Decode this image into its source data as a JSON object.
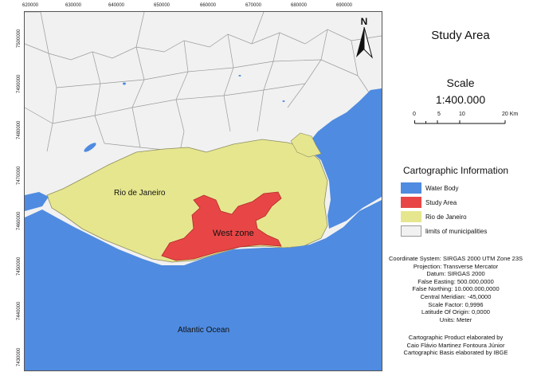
{
  "map": {
    "x_ticks": [
      "620000",
      "630000",
      "640000",
      "650000",
      "660000",
      "670000",
      "680000",
      "690000"
    ],
    "y_ticks": [
      "7500000",
      "7490000",
      "7480000",
      "7470000",
      "7460000",
      "7450000",
      "7440000",
      "7430000"
    ],
    "labels": {
      "rio": "Rio de Janeiro",
      "west_zone": "West zone",
      "atlantic": "Atlantic Ocean"
    },
    "north_label": "N"
  },
  "title": "Study Area",
  "scale": {
    "title": "Scale",
    "ratio": "1:400.000",
    "ticks": [
      "0",
      "5",
      "10",
      "20 Km"
    ]
  },
  "legend": {
    "title": "Cartographic Information",
    "items": [
      {
        "label": "Water Body",
        "color": "#4f8be0"
      },
      {
        "label": "Study Area",
        "color": "#e84646"
      },
      {
        "label": "Rio de Janeiro",
        "color": "#e6e68f"
      },
      {
        "label": "limits of municipalities",
        "color": "#f1f1f1"
      }
    ]
  },
  "info_lines": [
    "Coordinate System: SIRGAS 2000 UTM Zone 23S",
    "Projection: Transverse Mercator",
    "Datum: SIRGAS 2000",
    "False Easting: 500.000,0000",
    "False Northing: 10.000.000,0000",
    "Central Meridian: -45,0000",
    "Scale Factor: 0,9996",
    "Latitude Of Origin: 0,0000",
    "Units: Meter"
  ],
  "credits": [
    "Cartographic Product elaborated by",
    "Caio Flávio Martinez Fontoura Júnior",
    "Cartographic Basis elaborated by IBGE"
  ]
}
